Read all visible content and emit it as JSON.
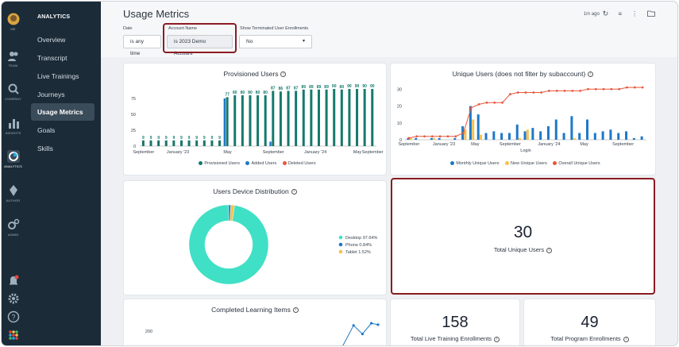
{
  "rail": {
    "items": [
      {
        "key": "me",
        "label": "ME"
      },
      {
        "key": "team",
        "label": "TEAM"
      },
      {
        "key": "company",
        "label": "COMPANY"
      },
      {
        "key": "insights",
        "label": "INSIGHTS"
      },
      {
        "key": "analytics",
        "label": "ANALYTICS"
      },
      {
        "key": "author",
        "label": "AUTHOR"
      },
      {
        "key": "admin",
        "label": "ADMIN"
      }
    ]
  },
  "nav": {
    "title": "ANALYTICS",
    "items": [
      "Overview",
      "Transcript",
      "Live Trainings",
      "Journeys",
      "Usage Metrics",
      "Goals",
      "Skills"
    ],
    "active": "Usage Metrics"
  },
  "header": {
    "title": "Usage Metrics",
    "refresh_text": "1m ago"
  },
  "filters": {
    "date_label": "Date",
    "date_value": "is any time",
    "account_label": "Account Name",
    "account_value": "is 2023 Demo Account",
    "terminated_label": "Show Terminated User Enrollments",
    "terminated_value": "No"
  },
  "colors": {
    "teal": "#147a6c",
    "blue": "#1f78c8",
    "red": "#e8573c",
    "yellow": "#f6c24b",
    "donut": "#3fe0c5",
    "highlight": "#8a1c22"
  },
  "provisioned": {
    "title": "Provisioned Users",
    "legend": [
      "Provisioned Users",
      "Added Users",
      "Deleted Users"
    ],
    "chart_data": {
      "type": "bar",
      "ylim": [
        0,
        100
      ],
      "yticks": [
        "0",
        "25",
        "50",
        "75"
      ],
      "xticks": [
        "September",
        "January '23",
        "May",
        "September",
        "January '24",
        "May",
        "September"
      ],
      "series": [
        {
          "name": "Provisioned Users",
          "values": [
            9,
            9,
            9,
            9,
            9,
            9,
            9,
            9,
            9,
            9,
            9,
            77,
            80,
            80,
            80,
            80,
            80,
            87,
            86,
            87,
            87,
            89,
            89,
            89,
            89,
            90,
            89,
            90,
            90,
            90,
            90
          ]
        },
        {
          "name": "Added Users",
          "values": [
            0,
            0,
            0,
            0,
            0,
            0,
            0,
            0,
            0,
            0,
            0,
            75,
            0,
            0,
            0,
            0,
            0,
            7,
            0,
            0,
            0,
            0,
            0,
            0,
            0,
            0,
            0,
            0,
            0,
            0,
            0
          ]
        },
        {
          "name": "Deleted Users",
          "values": [
            0,
            0,
            0,
            0,
            0,
            0,
            0,
            0,
            0,
            0,
            0,
            0,
            0,
            0,
            0,
            0,
            0,
            0,
            0,
            0,
            0,
            0,
            0,
            0,
            0,
            0,
            0,
            0,
            0,
            0,
            0
          ]
        }
      ]
    }
  },
  "unique_users": {
    "title": "Unique Users (does not filter by subaccount)",
    "xlabel": "Login",
    "legend": [
      "Monthly Unique Users",
      "New Unique Users",
      "Overall Unique Users"
    ],
    "chart_data": {
      "type": "bar",
      "ylim": [
        0,
        32
      ],
      "yticks": [
        "0",
        "10",
        "20",
        "30"
      ],
      "xticks": [
        "September",
        "January '23",
        "May",
        "September",
        "January '24",
        "May",
        "September"
      ],
      "series": [
        {
          "name": "Monthly Unique Users",
          "values": [
            1,
            1,
            0,
            1,
            1,
            0,
            1,
            8,
            20,
            15,
            4,
            5,
            4,
            4,
            9,
            5,
            7,
            5,
            8,
            12,
            4,
            14,
            4,
            12,
            4,
            5,
            6,
            4,
            5,
            1,
            2
          ]
        },
        {
          "name": "New Unique Users",
          "values": [
            1,
            0,
            0,
            1,
            0,
            0,
            0,
            6,
            12,
            3,
            0,
            0,
            0,
            0,
            1,
            6,
            0,
            0,
            0,
            0,
            0,
            1,
            0,
            0,
            0,
            0,
            0,
            0,
            0,
            0,
            0
          ]
        },
        {
          "name": "Overall Unique Users",
          "values": [
            1,
            2,
            2,
            2,
            2,
            2,
            2,
            4,
            19,
            21,
            22,
            22,
            22,
            27,
            28,
            28,
            28,
            28,
            29,
            29,
            29,
            29,
            29,
            30,
            30,
            30,
            30,
            30,
            31,
            31,
            31
          ]
        }
      ]
    }
  },
  "device": {
    "title": "Users Device Distribution",
    "chart_data": {
      "type": "pie",
      "labels": [
        "Desktop 97.64%",
        "Phone 0.84%",
        "Tablet 1.52%"
      ],
      "values": [
        97.64,
        0.84,
        1.52
      ]
    }
  },
  "total_unique": {
    "value": "30",
    "label": "Total Unique Users"
  },
  "completed": {
    "title": "Completed Learning Items",
    "chart_data": {
      "type": "line",
      "yticks": [
        "200"
      ],
      "visible_points": [
        {
          "x": 0.89,
          "y": 240
        },
        {
          "x": 0.93,
          "y": 180
        },
        {
          "x": 0.97,
          "y": 255
        },
        {
          "x": 1.0,
          "y": 245
        }
      ]
    }
  },
  "live_training": {
    "value": "158",
    "label": "Total Live Training Enrollments"
  },
  "program": {
    "value": "49",
    "label": "Total Program Enrollments"
  }
}
